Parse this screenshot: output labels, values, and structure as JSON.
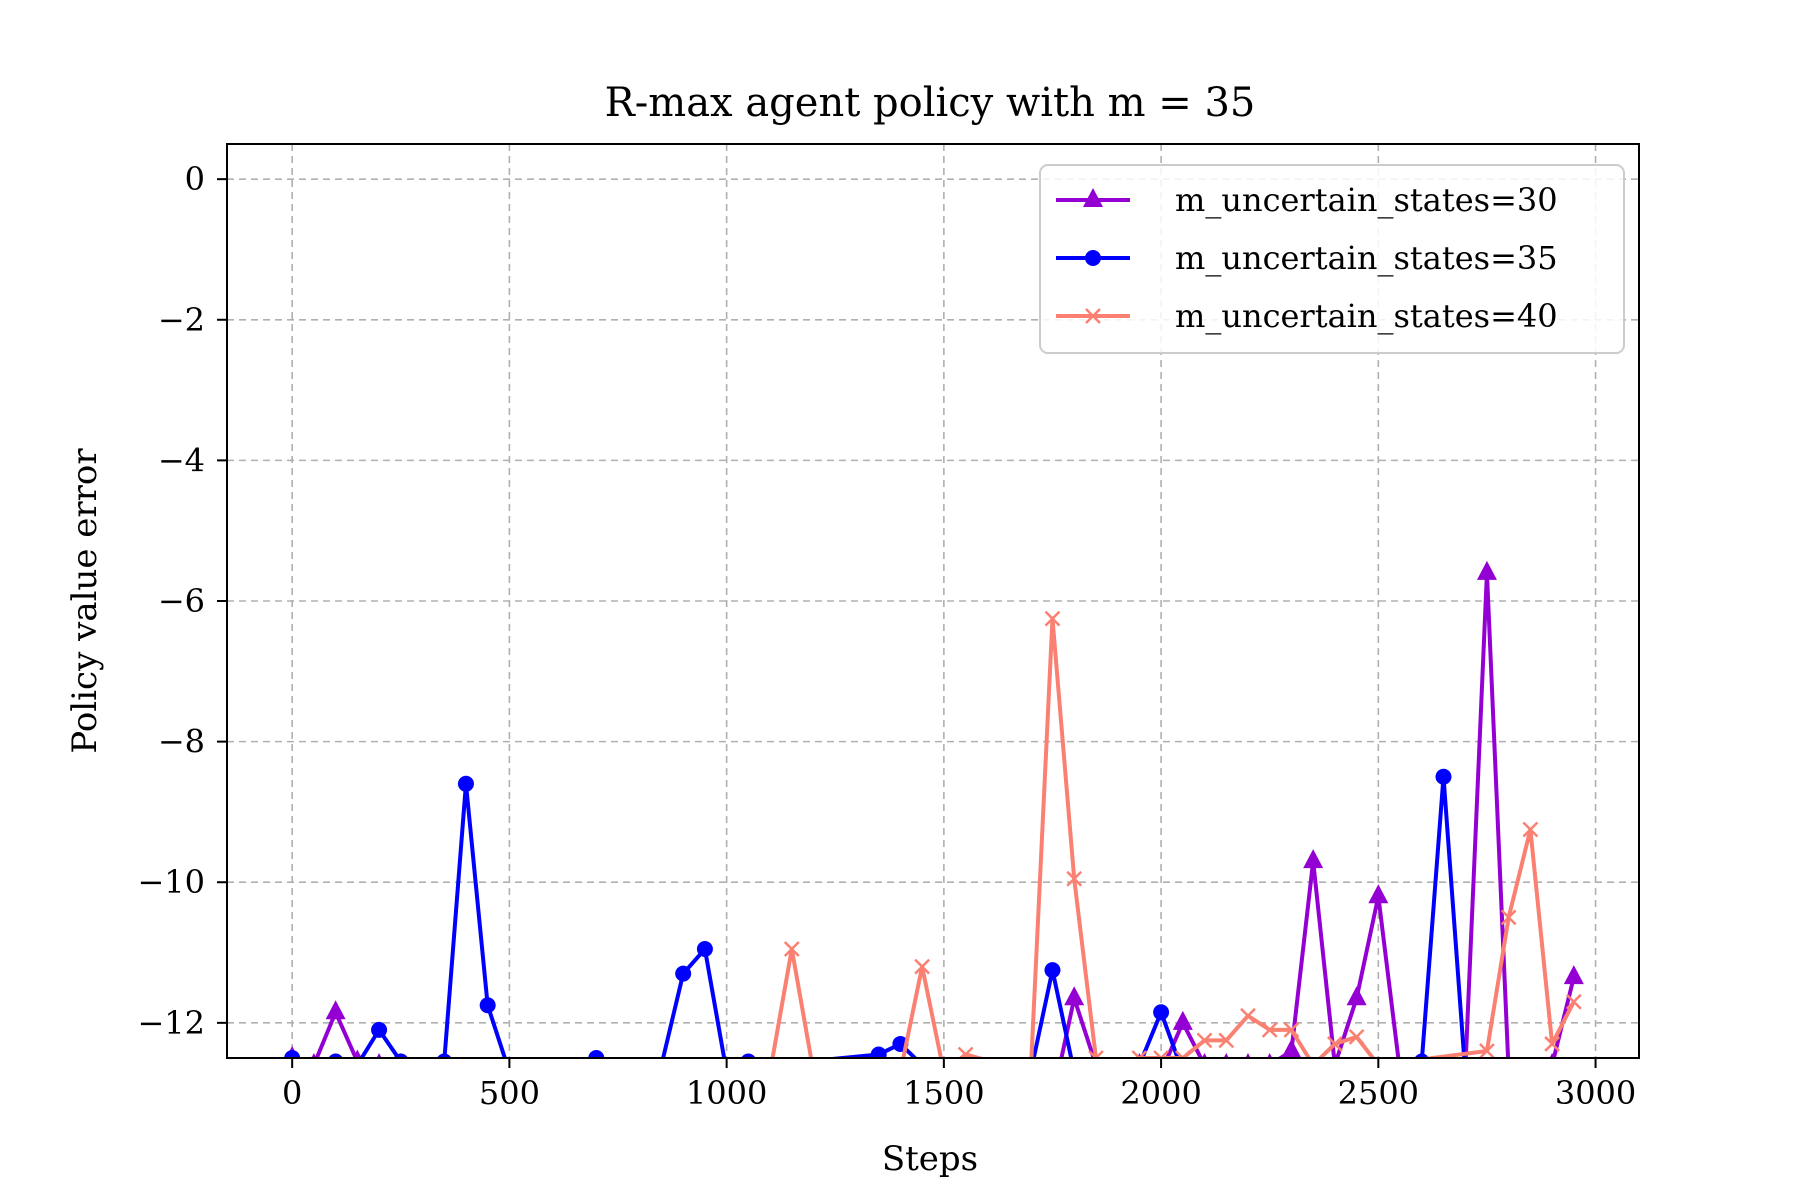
{
  "chart_data": {
    "type": "line",
    "title": "R-max agent policy with m = 35",
    "xlabel": "Steps",
    "ylabel": "Policy value error",
    "xlim": [
      -150,
      3100
    ],
    "ylim": [
      -12.5,
      0.5
    ],
    "xticks": [
      0,
      500,
      1000,
      1500,
      2000,
      2500,
      3000
    ],
    "xtick_labels": [
      "0",
      "500",
      "1000",
      "1500",
      "2000",
      "2500",
      "3000"
    ],
    "yticks": [
      0,
      -2,
      -4,
      -6,
      -8,
      -10,
      -12
    ],
    "ytick_labels": [
      "0",
      "−2",
      "−4",
      "−6",
      "−8",
      "−10",
      "−12"
    ],
    "grid": true,
    "legend_position": "top-right",
    "series": [
      {
        "name": "m_uncertain_states=30",
        "color": "#9400D3",
        "marker": "triangle",
        "points": [
          [
            0,
            -12.5
          ],
          [
            50,
            -12.6
          ],
          [
            100,
            -11.85
          ],
          [
            150,
            -12.55
          ],
          [
            200,
            -12.6
          ],
          [
            250,
            -12.6
          ],
          [
            1850,
            -12.6
          ],
          [
            1800,
            -11.65
          ],
          [
            1750,
            -13.1
          ],
          [
            1950,
            -12.6
          ],
          [
            2000,
            -12.7
          ],
          [
            2050,
            -12.0
          ],
          [
            2100,
            -12.6
          ],
          [
            2150,
            -12.6
          ],
          [
            2200,
            -12.6
          ],
          [
            2250,
            -12.6
          ],
          [
            2300,
            -12.4
          ],
          [
            2350,
            -9.7
          ],
          [
            2400,
            -12.6
          ],
          [
            2450,
            -11.65
          ],
          [
            2500,
            -10.2
          ],
          [
            2550,
            -12.7
          ],
          [
            2600,
            -12.6
          ],
          [
            2650,
            -12.7
          ],
          [
            2700,
            -12.7
          ],
          [
            2750,
            -5.6
          ],
          [
            2800,
            -12.7
          ],
          [
            2850,
            -12.7
          ],
          [
            2900,
            -12.6
          ],
          [
            2950,
            -11.35
          ]
        ]
      },
      {
        "name": "m_uncertain_states=35",
        "color": "#0000FF",
        "marker": "circle",
        "points": [
          [
            0,
            -12.5
          ],
          [
            50,
            -12.6
          ],
          [
            100,
            -12.55
          ],
          [
            150,
            -12.6
          ],
          [
            200,
            -12.1
          ],
          [
            250,
            -12.55
          ],
          [
            300,
            -12.6
          ],
          [
            350,
            -12.55
          ],
          [
            400,
            -8.6
          ],
          [
            450,
            -11.75
          ],
          [
            500,
            -12.7
          ],
          [
            700,
            -12.5
          ],
          [
            750,
            -12.6
          ],
          [
            850,
            -12.6
          ],
          [
            900,
            -11.3
          ],
          [
            950,
            -10.95
          ],
          [
            1000,
            -12.7
          ],
          [
            1050,
            -12.55
          ],
          [
            1100,
            -12.6
          ],
          [
            1350,
            -12.45
          ],
          [
            1400,
            -12.3
          ],
          [
            1450,
            -12.6
          ],
          [
            1700,
            -12.7
          ],
          [
            1750,
            -11.25
          ],
          [
            1800,
            -12.7
          ],
          [
            1950,
            -12.6
          ],
          [
            2000,
            -11.85
          ],
          [
            2050,
            -12.7
          ],
          [
            2600,
            -12.55
          ],
          [
            2650,
            -8.5
          ],
          [
            2700,
            -12.7
          ]
        ]
      },
      {
        "name": "m_uncertain_states=40",
        "color": "#FA8072",
        "marker": "x",
        "points": [
          [
            1100,
            -12.7
          ],
          [
            1150,
            -10.95
          ],
          [
            1200,
            -12.7
          ],
          [
            1400,
            -12.7
          ],
          [
            1450,
            -11.2
          ],
          [
            1500,
            -12.7
          ],
          [
            1550,
            -12.45
          ],
          [
            1700,
            -12.7
          ],
          [
            1750,
            -6.25
          ],
          [
            1800,
            -9.95
          ],
          [
            1850,
            -12.5
          ],
          [
            1900,
            -12.6
          ],
          [
            1950,
            -12.5
          ],
          [
            2000,
            -12.5
          ],
          [
            2050,
            -12.5
          ],
          [
            2100,
            -12.25
          ],
          [
            2150,
            -12.25
          ],
          [
            2200,
            -11.9
          ],
          [
            2250,
            -12.1
          ],
          [
            2300,
            -12.1
          ],
          [
            2350,
            -12.6
          ],
          [
            2400,
            -12.3
          ],
          [
            2450,
            -12.2
          ],
          [
            2500,
            -12.6
          ],
          [
            2750,
            -12.4
          ],
          [
            2800,
            -10.5
          ],
          [
            2850,
            -9.25
          ],
          [
            2900,
            -12.3
          ],
          [
            2950,
            -11.7
          ]
        ]
      }
    ]
  }
}
